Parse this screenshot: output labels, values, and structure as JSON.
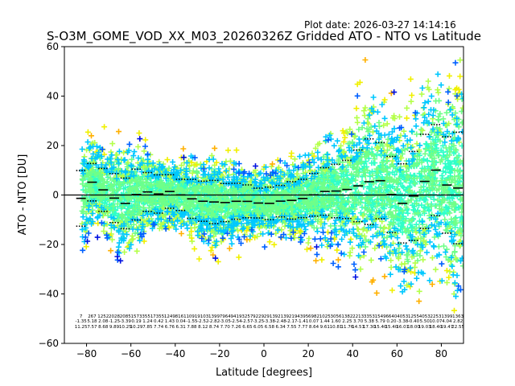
{
  "plot_date": "Plot date: 2026-03-27 14:14:16",
  "chart_data": {
    "type": "scatter",
    "title": "S-O3M_GOME_VOD_XX_M03_20260326Z Gridded ATO - NTO vs Latitude",
    "xlabel": "Latitude [degrees]",
    "ylabel": "ATO - NTO [DU]",
    "xlim": [
      -90,
      90
    ],
    "ylim": [
      -60,
      60
    ],
    "xticks": [
      -80,
      -60,
      -40,
      -20,
      0,
      20,
      40,
      60,
      80
    ],
    "yticks": [
      -60,
      -40,
      -20,
      0,
      20,
      40,
      60
    ],
    "grid": false,
    "legend": "none",
    "zero_line": 0,
    "marker": "plus",
    "density_colors": [
      "#2fffc8",
      "#6fff88",
      "#b4ff4a",
      "#f0f000",
      "#ffb000",
      "#00c8ff",
      "#0060ff",
      "#0010e0"
    ],
    "bins": [
      {
        "lat": -82.5,
        "n": "7",
        "mean": "-1.35",
        "std": "11.25",
        "mean_val": -1.35,
        "std_val": 11.25
      },
      {
        "lat": -77.5,
        "n": "267",
        "mean": "5.18",
        "std": "7.57",
        "mean_val": 5.18,
        "std_val": 7.57
      },
      {
        "lat": -72.5,
        "n": "1252",
        "mean": "2.08",
        "std": "8.68",
        "mean_val": 2.08,
        "std_val": 8.68
      },
      {
        "lat": -67.5,
        "n": "2028",
        "mean": "-1.25",
        "std": "9.89",
        "mean_val": -1.25,
        "std_val": 9.89
      },
      {
        "lat": -62.5,
        "n": "2085",
        "mean": "-3.39",
        "std": "10.25",
        "mean_val": -3.39,
        "std_val": 10.25
      },
      {
        "lat": -57.5,
        "n": "1573",
        "mean": "0.19",
        "std": "10.29",
        "mean_val": 0.19,
        "std_val": 10.29
      },
      {
        "lat": -52.5,
        "n": "3551",
        "mean": "1.24",
        "std": "7.85",
        "mean_val": 1.24,
        "std_val": 7.85
      },
      {
        "lat": -47.5,
        "n": "7355",
        "mean": "0.42",
        "std": "7.74",
        "mean_val": 0.42,
        "std_val": 7.74
      },
      {
        "lat": -42.5,
        "n": "1249",
        "mean": "1.43",
        "std": "6.76",
        "mean_val": 1.43,
        "std_val": 6.76
      },
      {
        "lat": -37.5,
        "n": "8161",
        "mean": "0.04",
        "std": "6.31",
        "mean_val": 0.04,
        "std_val": 6.31
      },
      {
        "lat": -32.5,
        "n": "1091",
        "mean": "-1.55",
        "std": "7.88",
        "mean_val": -1.55,
        "std_val": 7.88
      },
      {
        "lat": -27.5,
        "n": "9103",
        "mean": "-2.52",
        "std": "8.12",
        "mean_val": -2.52,
        "std_val": 8.12
      },
      {
        "lat": -22.5,
        "n": "1399",
        "mean": "-2.82",
        "std": "8.74",
        "mean_val": -2.82,
        "std_val": 8.74
      },
      {
        "lat": -17.5,
        "n": "7964",
        "mean": "-3.05",
        "std": "7.70",
        "mean_val": -3.05,
        "std_val": 7.7
      },
      {
        "lat": -12.5,
        "n": "9419",
        "mean": "-2.54",
        "std": "7.26",
        "mean_val": -2.54,
        "std_val": 7.26
      },
      {
        "lat": -7.5,
        "n": "3257",
        "mean": "-2.57",
        "std": "6.65",
        "mean_val": -2.57,
        "std_val": 6.65
      },
      {
        "lat": -2.5,
        "n": "9229",
        "mean": "-3.25",
        "std": "6.05",
        "mean_val": -3.25,
        "std_val": 6.05
      },
      {
        "lat": 2.5,
        "n": "2913",
        "mean": "-3.38",
        "std": "6.58",
        "mean_val": -3.38,
        "std_val": 6.58
      },
      {
        "lat": 7.5,
        "n": "9213",
        "mean": "-2.48",
        "std": "6.34",
        "mean_val": -2.48,
        "std_val": 6.34
      },
      {
        "lat": 12.5,
        "n": "9219",
        "mean": "-2.17",
        "std": "7.55",
        "mean_val": -2.17,
        "std_val": 7.55
      },
      {
        "lat": 17.5,
        "n": "4395",
        "mean": "-1.41",
        "std": "7.77",
        "mean_val": -1.41,
        "std_val": 7.77
      },
      {
        "lat": 22.5,
        "n": "6982",
        "mean": "0.07",
        "std": "8.64",
        "mean_val": 0.07,
        "std_val": 8.64
      },
      {
        "lat": 27.5,
        "n": "1025",
        "mean": "1.44",
        "std": "9.61",
        "mean_val": 1.44,
        "std_val": 9.61
      },
      {
        "lat": 32.5,
        "n": "3056",
        "mean": "1.60",
        "std": "10.81",
        "mean_val": 1.6,
        "std_val": 10.81
      },
      {
        "lat": 37.5,
        "n": "1382",
        "mean": "2.25",
        "std": "11.76",
        "mean_val": 2.25,
        "std_val": 11.76
      },
      {
        "lat": 42.5,
        "n": "2213",
        "mean": "3.70",
        "std": "14.51",
        "mean_val": 3.7,
        "std_val": 14.51
      },
      {
        "lat": 47.5,
        "n": "3353",
        "mean": "5.38",
        "std": "17.30",
        "mean_val": 5.38,
        "std_val": 17.3
      },
      {
        "lat": 52.5,
        "n": "1549",
        "mean": "5.79",
        "std": "15.40",
        "mean_val": 5.79,
        "std_val": 15.4
      },
      {
        "lat": 57.5,
        "n": "6640",
        "mean": "0.20",
        "std": "15.40",
        "mean_val": 0.2,
        "std_val": 15.4
      },
      {
        "lat": 62.5,
        "n": "4053",
        "mean": "-3.38",
        "std": "16.01",
        "mean_val": -3.38,
        "std_val": 16.01
      },
      {
        "lat": 67.5,
        "n": "1255",
        "mean": "-0.40",
        "std": "18.00",
        "mean_val": -0.4,
        "std_val": 18.0
      },
      {
        "lat": 72.5,
        "n": "4053",
        "mean": "5.50",
        "std": "19.03",
        "mean_val": 5.5,
        "std_val": 19.03
      },
      {
        "lat": 77.5,
        "n": "2253",
        "mean": "10.07",
        "std": "18.40",
        "mean_val": 10.07,
        "std_val": 18.4
      },
      {
        "lat": 82.5,
        "n": "1399",
        "mean": "4.04",
        "std": "19.47",
        "mean_val": 4.04,
        "std_val": 19.47
      },
      {
        "lat": 87.5,
        "n": "1363",
        "mean": "2.82",
        "std": "22.55",
        "mean_val": 2.82,
        "std_val": 22.55
      }
    ]
  }
}
